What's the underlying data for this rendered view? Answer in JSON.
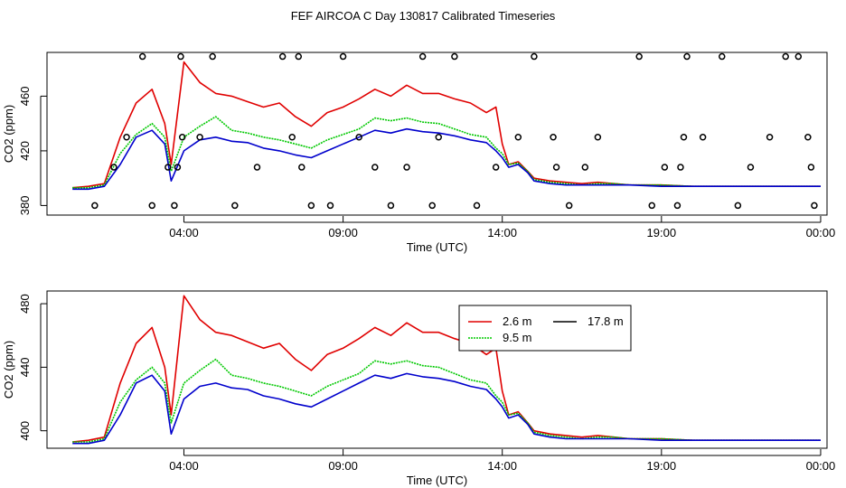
{
  "title": "FEF AIRCOA C  Day 130817  Calibrated Timeseries",
  "colors": {
    "s1": "#e00000",
    "s2": "#00c800",
    "s3": "#0000cc",
    "axis": "#000000"
  },
  "legend": {
    "entries": [
      {
        "label": "2.6 m",
        "color": "#e00000"
      },
      {
        "label": "17.8 m",
        "color": "#000000"
      },
      {
        "label": "9.5 m",
        "color": "#00c800"
      }
    ]
  },
  "chart_data": [
    {
      "type": "line",
      "title": "",
      "xlabel": "Time (UTC)",
      "ylabel": "CO2 (ppm)",
      "xlim": [
        -0.3,
        24.2
      ],
      "ylim": [
        373,
        492
      ],
      "xticks": [
        4,
        9,
        14,
        19,
        24
      ],
      "xtick_labels": [
        "04:00",
        "09:00",
        "14:00",
        "19:00",
        "00:00"
      ],
      "yticks": [
        380,
        420,
        460
      ],
      "ytick_labels": [
        "380",
        "420",
        "460"
      ],
      "grid": false,
      "x": [
        0.5,
        1.0,
        1.5,
        2.0,
        2.5,
        3.0,
        3.4,
        3.6,
        4.0,
        4.5,
        5.0,
        5.5,
        6.0,
        6.5,
        7.0,
        7.5,
        8.0,
        8.5,
        9.0,
        9.5,
        10.0,
        10.5,
        11.0,
        11.5,
        12.0,
        12.5,
        13.0,
        13.5,
        13.8,
        14.0,
        14.2,
        14.5,
        14.8,
        15.0,
        15.5,
        16.0,
        16.5,
        17.0,
        17.5,
        18.0,
        19.0,
        20.0,
        21.0,
        22.0,
        23.0,
        23.8,
        24.0
      ],
      "series": [
        {
          "name": "2.6 m",
          "values": [
            393,
            394,
            396,
            430,
            455,
            465,
            440,
            410,
            485,
            470,
            462,
            460,
            456,
            452,
            455,
            445,
            438,
            448,
            452,
            458,
            465,
            460,
            468,
            462,
            462,
            458,
            455,
            448,
            452,
            425,
            410,
            412,
            405,
            400,
            398,
            397,
            396,
            397,
            396,
            395,
            395,
            394,
            394,
            394,
            394,
            394,
            394
          ]
        },
        {
          "name": "9.5 m",
          "values": [
            393,
            393,
            395,
            418,
            432,
            440,
            430,
            405,
            430,
            438,
            445,
            435,
            433,
            430,
            428,
            425,
            422,
            428,
            432,
            436,
            444,
            442,
            444,
            441,
            440,
            436,
            432,
            430,
            422,
            418,
            410,
            411,
            405,
            399,
            397,
            396,
            395,
            396,
            396,
            395,
            395,
            394,
            394,
            394,
            394,
            394,
            394
          ]
        },
        {
          "name": "17.8 m",
          "values": [
            392,
            392,
            394,
            410,
            430,
            435,
            425,
            398,
            420,
            428,
            430,
            427,
            426,
            422,
            420,
            417,
            415,
            420,
            425,
            430,
            435,
            433,
            436,
            434,
            433,
            431,
            428,
            426,
            420,
            415,
            408,
            410,
            404,
            398,
            396,
            395,
            395,
            395,
            395,
            395,
            394,
            394,
            394,
            394,
            394,
            394,
            394
          ]
        }
      ],
      "markers": {
        "shape": "circle",
        "points": [
          [
            1.2,
            380
          ],
          [
            1.8,
            408
          ],
          [
            2.2,
            430
          ],
          [
            2.7,
            489
          ],
          [
            3.0,
            380
          ],
          [
            3.5,
            408
          ],
          [
            3.7,
            380
          ],
          [
            3.8,
            408
          ],
          [
            3.9,
            489
          ],
          [
            3.95,
            430
          ],
          [
            4.5,
            430
          ],
          [
            4.9,
            489
          ],
          [
            5.6,
            380
          ],
          [
            6.3,
            408
          ],
          [
            7.1,
            489
          ],
          [
            7.4,
            430
          ],
          [
            7.6,
            489
          ],
          [
            7.7,
            408
          ],
          [
            8.0,
            380
          ],
          [
            8.6,
            380
          ],
          [
            9.0,
            489
          ],
          [
            9.5,
            430
          ],
          [
            10.0,
            408
          ],
          [
            10.5,
            380
          ],
          [
            11.0,
            408
          ],
          [
            11.5,
            489
          ],
          [
            11.8,
            380
          ],
          [
            12.0,
            430
          ],
          [
            12.5,
            489
          ],
          [
            13.2,
            380
          ],
          [
            13.8,
            408
          ],
          [
            14.5,
            430
          ],
          [
            15.0,
            489
          ],
          [
            15.6,
            430
          ],
          [
            15.7,
            408
          ],
          [
            16.1,
            380
          ],
          [
            16.6,
            408
          ],
          [
            17.0,
            430
          ],
          [
            18.3,
            489
          ],
          [
            18.7,
            380
          ],
          [
            19.1,
            408
          ],
          [
            19.5,
            380
          ],
          [
            19.6,
            408
          ],
          [
            19.7,
            430
          ],
          [
            19.8,
            489
          ],
          [
            20.3,
            430
          ],
          [
            20.9,
            489
          ],
          [
            21.4,
            380
          ],
          [
            21.8,
            408
          ],
          [
            22.4,
            430
          ],
          [
            22.9,
            489
          ],
          [
            23.3,
            489
          ],
          [
            23.6,
            430
          ],
          [
            23.7,
            408
          ],
          [
            23.8,
            380
          ]
        ]
      }
    },
    {
      "type": "line",
      "title": "",
      "xlabel": "Time (UTC)",
      "ylabel": "CO2 (ppm)",
      "xlim": [
        -0.3,
        24.2
      ],
      "ylim": [
        389,
        488
      ],
      "xticks": [
        4,
        9,
        14,
        19,
        24
      ],
      "xtick_labels": [
        "04:00",
        "09:00",
        "14:00",
        "19:00",
        "00:00"
      ],
      "yticks": [
        400,
        440,
        480
      ],
      "ytick_labels": [
        "400",
        "440",
        "480"
      ],
      "grid": false,
      "legend_position": "top-right",
      "x": [
        0.5,
        1.0,
        1.5,
        2.0,
        2.5,
        3.0,
        3.4,
        3.6,
        4.0,
        4.5,
        5.0,
        5.5,
        6.0,
        6.5,
        7.0,
        7.5,
        8.0,
        8.5,
        9.0,
        9.5,
        10.0,
        10.5,
        11.0,
        11.5,
        12.0,
        12.5,
        13.0,
        13.5,
        13.8,
        14.0,
        14.2,
        14.5,
        14.8,
        15.0,
        15.5,
        16.0,
        16.5,
        17.0,
        17.5,
        18.0,
        19.0,
        20.0,
        21.0,
        22.0,
        23.0,
        23.8,
        24.0
      ],
      "series": [
        {
          "name": "2.6 m",
          "values": [
            393,
            394,
            396,
            430,
            455,
            465,
            440,
            410,
            485,
            470,
            462,
            460,
            456,
            452,
            455,
            445,
            438,
            448,
            452,
            458,
            465,
            460,
            468,
            462,
            462,
            458,
            455,
            448,
            452,
            425,
            410,
            412,
            405,
            400,
            398,
            397,
            396,
            397,
            396,
            395,
            395,
            394,
            394,
            394,
            394,
            394,
            394
          ]
        },
        {
          "name": "9.5 m",
          "values": [
            393,
            393,
            395,
            418,
            432,
            440,
            430,
            405,
            430,
            438,
            445,
            435,
            433,
            430,
            428,
            425,
            422,
            428,
            432,
            436,
            444,
            442,
            444,
            441,
            440,
            436,
            432,
            430,
            422,
            418,
            410,
            411,
            405,
            399,
            397,
            396,
            395,
            396,
            396,
            395,
            395,
            394,
            394,
            394,
            394,
            394,
            394
          ]
        },
        {
          "name": "17.8 m",
          "values": [
            392,
            392,
            394,
            410,
            430,
            435,
            425,
            398,
            420,
            428,
            430,
            427,
            426,
            422,
            420,
            417,
            415,
            420,
            425,
            430,
            435,
            433,
            436,
            434,
            433,
            431,
            428,
            426,
            420,
            415,
            408,
            410,
            404,
            398,
            396,
            395,
            395,
            395,
            395,
            395,
            394,
            394,
            394,
            394,
            394,
            394,
            394
          ]
        }
      ]
    }
  ]
}
